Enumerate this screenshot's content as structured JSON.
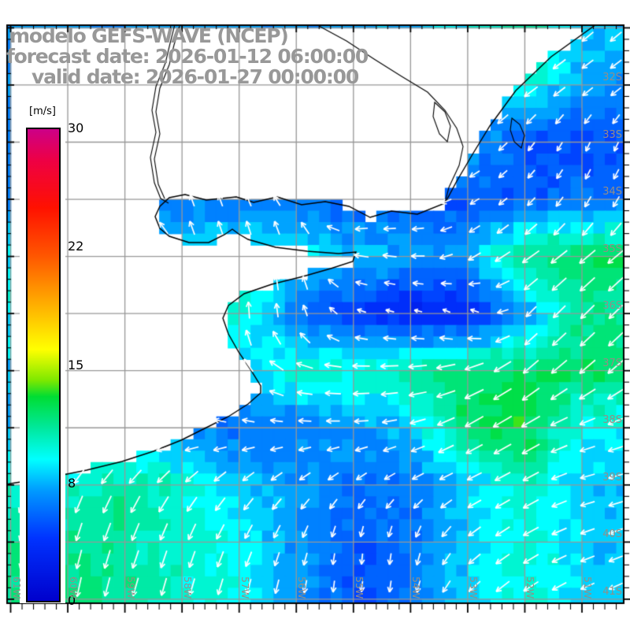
{
  "title": {
    "line1": "modelo GEFS-WAVE (NCEP)",
    "line2": "forecast date: 2026-01-12 06:00:00",
    "line3": "valid date: 2026-01-27 00:00:00"
  },
  "colorbar": {
    "unit_label": "[m/s]",
    "tick_labels": [
      "30",
      "22",
      "15",
      "8",
      "0"
    ],
    "min": 0,
    "max": 30
  },
  "axes": {
    "lat_labels": [
      "32S",
      "33S",
      "34S",
      "35S",
      "36S",
      "37S",
      "38S",
      "39S",
      "40S",
      "41S"
    ],
    "lon_labels": [
      "61W",
      "60W",
      "59W",
      "58W",
      "57W",
      "56W",
      "55W",
      "54W",
      "53W",
      "52W",
      "51W"
    ]
  },
  "style": {
    "grid_color": "#979797",
    "coast_color": "#000000",
    "land_color": "#ffffff",
    "title_color": "#989898",
    "axis_label_color": "#948e86",
    "arrow_color": "#ffffff"
  },
  "palette": [
    [
      0,
      "#0000cc"
    ],
    [
      4,
      "#0033ff"
    ],
    [
      7,
      "#0099ff"
    ],
    [
      9,
      "#00ffff"
    ],
    [
      11,
      "#00e89c"
    ],
    [
      13,
      "#00dd33"
    ],
    [
      14,
      "#7ce800"
    ],
    [
      16,
      "#ffff00"
    ],
    [
      19,
      "#ffaa00"
    ],
    [
      22,
      "#ff5500"
    ],
    [
      25,
      "#ff1100"
    ],
    [
      28,
      "#ee0044"
    ],
    [
      30,
      "#cc0088"
    ]
  ],
  "field": {
    "lon_deg": [
      -61,
      -60,
      -59,
      -58,
      -57,
      -56,
      -55,
      -54,
      -53,
      -52,
      -51
    ],
    "lat_deg": [
      -31,
      -32,
      -33,
      -34,
      -35,
      -36,
      -37,
      -38,
      -39,
      -40,
      -41
    ],
    "speed_ms": [
      [
        7,
        7,
        7,
        7,
        7,
        7,
        7,
        8,
        9,
        11,
        8
      ],
      [
        7,
        7,
        7,
        7,
        7,
        7,
        7,
        8,
        8,
        10,
        7
      ],
      [
        7,
        7,
        7,
        7,
        7,
        7,
        7,
        7,
        7,
        5,
        4.5
      ],
      [
        6,
        6,
        6,
        6,
        6,
        6,
        5,
        5,
        5,
        5,
        6
      ],
      [
        9,
        9,
        9,
        9,
        9,
        9,
        8,
        7,
        7,
        12,
        12
      ],
      [
        9,
        9,
        9,
        9,
        10,
        6,
        4,
        3,
        3,
        7,
        11
      ],
      [
        8,
        8,
        8,
        8,
        8,
        10,
        10,
        11,
        12,
        12,
        12
      ],
      [
        7,
        7,
        7,
        6,
        6,
        6,
        7,
        8,
        12,
        13,
        9
      ],
      [
        10,
        10,
        11,
        10,
        8,
        7,
        6,
        6,
        8,
        10,
        8
      ],
      [
        11,
        11,
        11,
        10,
        9,
        7,
        5,
        6,
        8,
        10,
        8
      ],
      [
        11,
        12,
        11,
        10,
        9,
        7,
        5,
        6,
        8,
        10,
        8
      ]
    ],
    "dir_screen_deg": [
      [
        140,
        140,
        140,
        140,
        140,
        140,
        140,
        140,
        140,
        140,
        140
      ],
      [
        140,
        140,
        140,
        140,
        140,
        140,
        140,
        140,
        140,
        145,
        145
      ],
      [
        145,
        145,
        145,
        145,
        145,
        145,
        145,
        145,
        150,
        130,
        115
      ],
      [
        150,
        150,
        150,
        250,
        250,
        230,
        160,
        170,
        150,
        135,
        120
      ],
      [
        150,
        150,
        245,
        250,
        255,
        265,
        190,
        185,
        150,
        145,
        140
      ],
      [
        150,
        150,
        250,
        272,
        268,
        260,
        200,
        190,
        210,
        135,
        135
      ],
      [
        150,
        150,
        230,
        230,
        240,
        195,
        180,
        175,
        160,
        140,
        140
      ],
      [
        185,
        185,
        185,
        185,
        185,
        182,
        178,
        165,
        150,
        150,
        160
      ],
      [
        115,
        115,
        120,
        130,
        135,
        140,
        140,
        150,
        155,
        150,
        165
      ],
      [
        105,
        105,
        110,
        110,
        115,
        110,
        95,
        100,
        140,
        150,
        160
      ],
      [
        100,
        100,
        105,
        105,
        105,
        100,
        95,
        100,
        135,
        145,
        155
      ]
    ]
  }
}
